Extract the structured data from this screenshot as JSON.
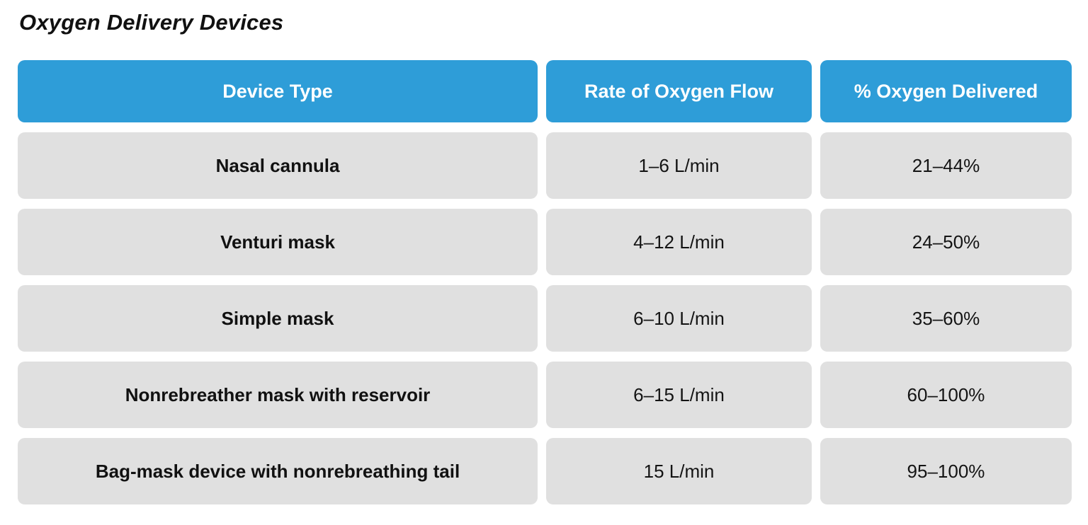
{
  "page": {
    "title": "Oxygen Delivery Devices"
  },
  "colors": {
    "header_bg": "#2E9DD8",
    "header_text": "#FFFFFF",
    "row_bg": "#E0E0E0",
    "row_text": "#141414"
  },
  "table": {
    "columns": {
      "device": "Device Type",
      "rate": "Rate of Oxygen Flow",
      "percent": "% Oxygen Delivered"
    },
    "rows": [
      {
        "device": "Nasal cannula",
        "rate": "1–6 L/min",
        "percent": "21–44%"
      },
      {
        "device": "Venturi mask",
        "rate": "4–12 L/min",
        "percent": "24–50%"
      },
      {
        "device": "Simple mask",
        "rate": "6–10 L/min",
        "percent": "35–60%"
      },
      {
        "device": "Nonrebreather mask with reservoir",
        "rate": "6–15 L/min",
        "percent": "60–100%"
      },
      {
        "device": "Bag-mask device with nonrebreathing tail",
        "rate": "15 L/min",
        "percent": "95–100%"
      }
    ]
  }
}
